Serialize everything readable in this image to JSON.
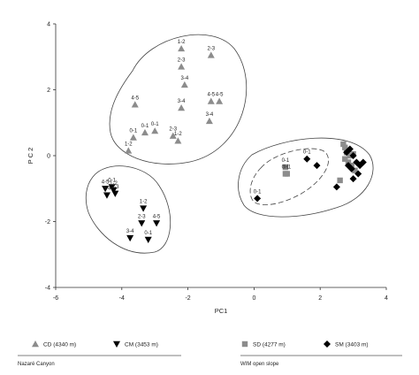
{
  "chart_data": {
    "type": "scatter",
    "title": "",
    "xlabel": "PC1",
    "ylabel": "P C 2",
    "xlim": [
      -6,
      4
    ],
    "ylim": [
      -4,
      4
    ],
    "xticks": [
      -6,
      -4,
      -2,
      0,
      2,
      4
    ],
    "yticks": [
      4,
      2,
      0,
      -2,
      -4
    ],
    "xtick_labels": [
      "-6",
      "-4",
      "-2",
      "0",
      "2",
      "4"
    ],
    "ytick_labels": [
      "4",
      "2",
      "0",
      "-2",
      "-4"
    ],
    "grid": false,
    "series": [
      {
        "name": "CD (4340 m)",
        "marker": "triangle-up",
        "color": "#8c8c8c",
        "points": [
          {
            "x": -2.2,
            "y": 3.25,
            "label": "1-2"
          },
          {
            "x": -1.3,
            "y": 3.05,
            "label": "2-3"
          },
          {
            "x": -2.2,
            "y": 2.7,
            "label": "2-3"
          },
          {
            "x": -2.1,
            "y": 2.15,
            "label": "3-4"
          },
          {
            "x": -3.6,
            "y": 1.55,
            "label": "4-5"
          },
          {
            "x": -1.3,
            "y": 1.65,
            "label": "4-5"
          },
          {
            "x": -1.05,
            "y": 1.65,
            "label": "4-5"
          },
          {
            "x": -2.2,
            "y": 1.45,
            "label": "3-4"
          },
          {
            "x": -1.35,
            "y": 1.05,
            "label": "3-4"
          },
          {
            "x": -3.0,
            "y": 0.75,
            "label": "0-1"
          },
          {
            "x": -3.3,
            "y": 0.7,
            "label": "0-1"
          },
          {
            "x": -3.65,
            "y": 0.55,
            "label": "0-1"
          },
          {
            "x": -2.45,
            "y": 0.6,
            "label": "2-3"
          },
          {
            "x": -2.3,
            "y": 0.45,
            "label": "1-2"
          },
          {
            "x": -3.8,
            "y": 0.15,
            "label": "1-2"
          }
        ]
      },
      {
        "name": "CM (3453 m)",
        "marker": "triangle-down",
        "color": "#000000",
        "points": [
          {
            "x": -4.5,
            "y": -1.0,
            "label": "4-5"
          },
          {
            "x": -4.3,
            "y": -0.95,
            "label": "0-1"
          },
          {
            "x": -4.25,
            "y": -1.05,
            "label": "1-2"
          },
          {
            "x": -4.2,
            "y": -1.15,
            "label": "2-3"
          },
          {
            "x": -4.45,
            "y": -1.2,
            "label": "3-4"
          },
          {
            "x": -3.35,
            "y": -1.6,
            "label": "1-2"
          },
          {
            "x": -3.4,
            "y": -2.05,
            "label": "2-3"
          },
          {
            "x": -2.95,
            "y": -2.05,
            "label": "4-5"
          },
          {
            "x": -3.75,
            "y": -2.5,
            "label": "3-4"
          },
          {
            "x": -3.2,
            "y": -2.55,
            "label": "0-1"
          }
        ]
      },
      {
        "name": "SD (4277 m)",
        "marker": "square",
        "color": "#8c8c8c",
        "points": [
          {
            "x": 0.95,
            "y": -0.35,
            "label": "0-1"
          },
          {
            "x": 0.95,
            "y": -0.55,
            "label": "0-1"
          },
          {
            "x": 1.0,
            "y": -0.55,
            "label": "0-1"
          },
          {
            "x": 2.6,
            "y": -0.75,
            "label": ""
          },
          {
            "x": 2.7,
            "y": 0.35,
            "label": ""
          },
          {
            "x": 2.75,
            "y": 0.25,
            "label": ""
          },
          {
            "x": 2.8,
            "y": 0.1,
            "label": ""
          },
          {
            "x": 2.75,
            "y": -0.1,
            "label": ""
          },
          {
            "x": 2.85,
            "y": -0.2,
            "label": ""
          },
          {
            "x": 2.9,
            "y": 0.0,
            "label": ""
          },
          {
            "x": 3.0,
            "y": 0.05,
            "label": ""
          },
          {
            "x": 2.95,
            "y": -0.3,
            "label": ""
          },
          {
            "x": 3.05,
            "y": -0.45,
            "label": ""
          }
        ]
      },
      {
        "name": "SM (3403 m)",
        "marker": "diamond",
        "color": "#000000",
        "points": [
          {
            "x": 0.1,
            "y": -1.3,
            "label": "0-1"
          },
          {
            "x": 1.6,
            "y": -0.1,
            "label": "0-1"
          },
          {
            "x": 1.9,
            "y": -0.3,
            "label": ""
          },
          {
            "x": 2.5,
            "y": -0.95,
            "label": ""
          },
          {
            "x": 2.8,
            "y": 0.1,
            "label": ""
          },
          {
            "x": 2.9,
            "y": 0.2,
            "label": ""
          },
          {
            "x": 2.85,
            "y": -0.3,
            "label": ""
          },
          {
            "x": 2.95,
            "y": -0.4,
            "label": ""
          },
          {
            "x": 3.0,
            "y": 0.0,
            "label": ""
          },
          {
            "x": 3.1,
            "y": -0.2,
            "label": ""
          },
          {
            "x": 3.15,
            "y": -0.55,
            "label": ""
          },
          {
            "x": 3.2,
            "y": -0.3,
            "label": ""
          },
          {
            "x": 3.3,
            "y": -0.2,
            "label": ""
          },
          {
            "x": 3.0,
            "y": -0.7,
            "label": ""
          }
        ]
      }
    ],
    "groups": [
      {
        "name": "Nazaré Canyon",
        "series": [
          "CD (4340 m)",
          "CM (3453 m)"
        ]
      },
      {
        "name": "WIM open slope",
        "series": [
          "SD (4277 m)",
          "SM (3403 m)"
        ]
      }
    ]
  }
}
